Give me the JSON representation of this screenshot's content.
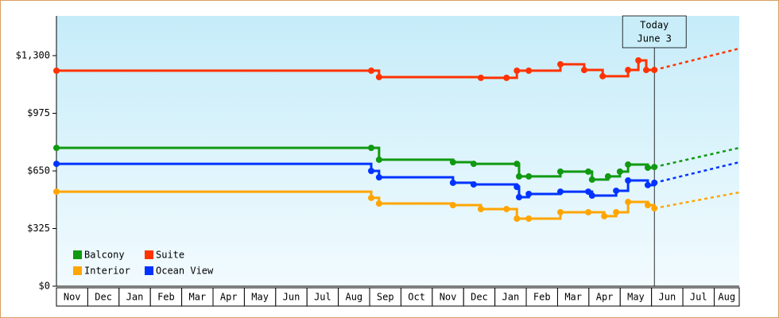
{
  "chart_data": {
    "type": "line",
    "step": true,
    "categories": [
      "Nov",
      "Dec",
      "Jan",
      "Feb",
      "Mar",
      "Apr",
      "May",
      "Jun",
      "Jul",
      "Aug",
      "Sep",
      "Oct",
      "Nov",
      "Dec",
      "Jan",
      "Feb",
      "Mar",
      "Apr",
      "May",
      "Jun",
      "Jul",
      "Aug"
    ],
    "xlim": [
      0,
      21.8
    ],
    "ylim": [
      0,
      1524
    ],
    "yticks": [
      {
        "value": 0,
        "label": "$0"
      },
      {
        "value": 325,
        "label": "$325"
      },
      {
        "value": 650,
        "label": "$650"
      },
      {
        "value": 975,
        "label": "$975"
      },
      {
        "value": 1300,
        "label": "$1,300"
      }
    ],
    "today": {
      "x": 19.09,
      "label": [
        "Today",
        "June 3"
      ]
    },
    "legend": "lower left",
    "series": [
      {
        "name": "Balcony",
        "color": "#119911",
        "x": [
          0,
          10.05,
          10.3,
          12.66,
          13.32,
          14.7,
          14.77,
          15.08,
          16.09,
          16.98,
          17.1,
          17.61,
          17.99,
          18.25,
          18.88,
          19.09
        ],
        "values": [
          780,
          780,
          713,
          699,
          690,
          690,
          619,
          619,
          646,
          646,
          601,
          619,
          646,
          686,
          668,
          672
        ],
        "forecast": {
          "x": [
            19.09,
            21.8
          ],
          "values": [
            672,
            780
          ]
        }
      },
      {
        "name": "Suite",
        "color": "#ff3300",
        "x": [
          0,
          10.05,
          10.3,
          13.55,
          14.37,
          14.7,
          15.08,
          16.09,
          16.85,
          17.44,
          18.25,
          18.58,
          18.83,
          19.09
        ],
        "values": [
          1215,
          1215,
          1179,
          1175,
          1175,
          1215,
          1215,
          1251,
          1219,
          1184,
          1219,
          1273,
          1219,
          1219
        ],
        "forecast": {
          "x": [
            19.09,
            21.8
          ],
          "values": [
            1219,
            1340
          ]
        }
      },
      {
        "name": "Interior",
        "color": "#ffa500",
        "x": [
          0,
          10.05,
          10.3,
          12.66,
          13.55,
          14.37,
          14.7,
          15.08,
          16.09,
          16.98,
          17.49,
          17.87,
          18.25,
          18.88,
          19.09
        ],
        "values": [
          533,
          498,
          466,
          457,
          435,
          435,
          381,
          381,
          417,
          417,
          395,
          417,
          475,
          457,
          439
        ],
        "forecast": {
          "x": [
            19.09,
            21.8
          ],
          "values": [
            439,
            529
          ]
        }
      },
      {
        "name": "Ocean View",
        "color": "#0033ff",
        "x": [
          0,
          10.05,
          10.3,
          12.66,
          13.32,
          14.7,
          14.77,
          15.08,
          16.09,
          16.98,
          17.1,
          17.87,
          18.25,
          18.88,
          19.09
        ],
        "values": [
          690,
          650,
          614,
          583,
          574,
          560,
          502,
          520,
          533,
          533,
          511,
          538,
          596,
          570,
          583
        ],
        "forecast": {
          "x": [
            19.09,
            21.8
          ],
          "values": [
            583,
            699
          ]
        }
      }
    ]
  }
}
